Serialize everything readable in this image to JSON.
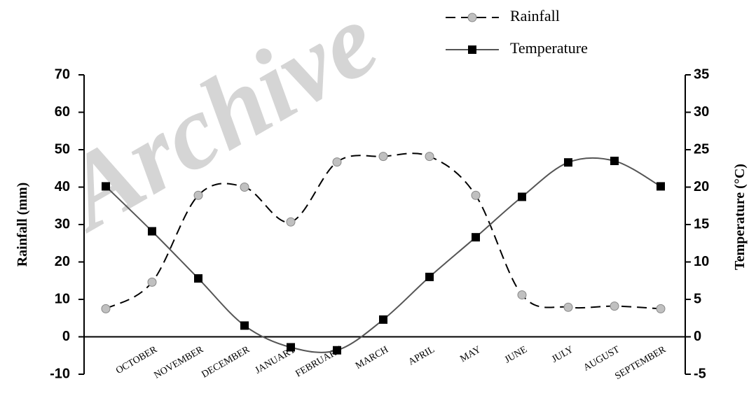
{
  "chart_data": {
    "type": "line",
    "watermark": "Archive",
    "categories": [
      null,
      "OCTOBER",
      "NOVEMBER",
      "DECEMBER",
      "JANUARY",
      "FEBRUARY",
      "MARCH",
      "APRIL",
      "MAY",
      "JUNE",
      "JULY",
      "AUGUST",
      "SEPTEMBER"
    ],
    "series": [
      {
        "name": "Rainfall",
        "color": "#000000",
        "marker_color": "#c0c0c0",
        "marker": "circle",
        "dash": true,
        "values": [
          7.5,
          14.6,
          37.8,
          40.0,
          30.7,
          46.7,
          48.2,
          48.2,
          37.8,
          11.2,
          7.9,
          8.2,
          7.5
        ]
      },
      {
        "name": "Temperature",
        "color": "#555555",
        "marker_color": "#000000",
        "marker": "square",
        "dash": false,
        "axis": "y2",
        "values": [
          20.1,
          14.1,
          7.8,
          1.5,
          -1.4,
          -1.8,
          2.3,
          8.0,
          13.3,
          18.7,
          23.3,
          23.5,
          20.1
        ]
      }
    ],
    "y_label": "Rainfall (mm)",
    "y2_label": "Temperature (°C)",
    "ylim": [
      -10,
      70
    ],
    "yticks": [
      -10,
      0,
      10,
      20,
      30,
      40,
      50,
      60,
      70
    ],
    "y2lim": [
      -5,
      35
    ],
    "y2ticks": [
      -5,
      0,
      5,
      10,
      15,
      20,
      25,
      30,
      35
    ],
    "legend": "top-right"
  }
}
